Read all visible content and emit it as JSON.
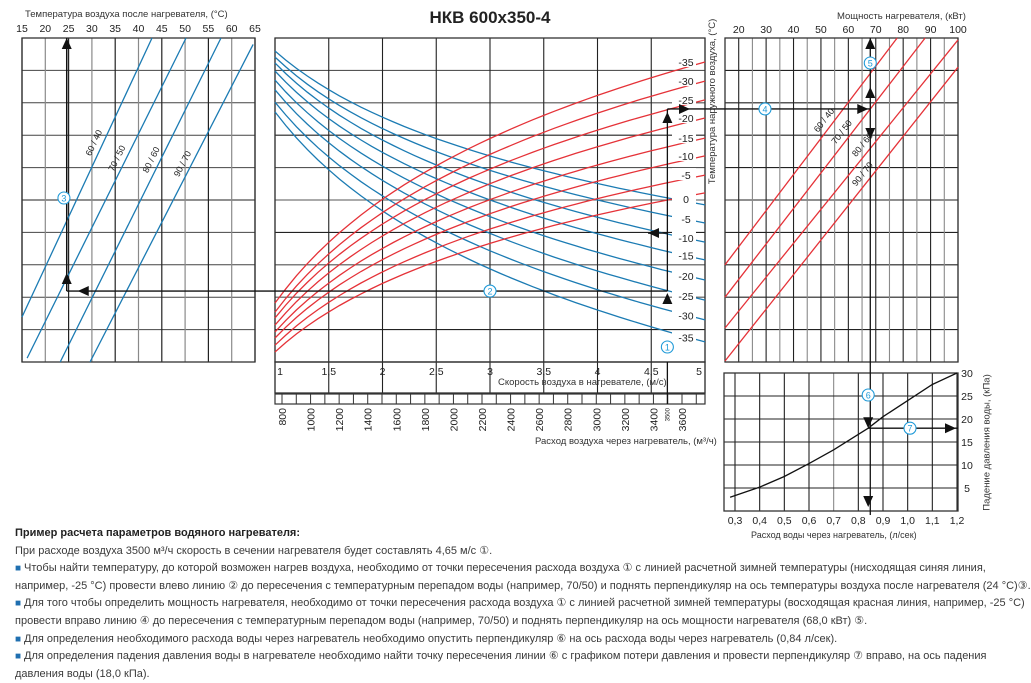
{
  "colors": {
    "blue": "#1b7bb3",
    "red": "#e53238",
    "grid_dark": "#222222",
    "grid_light": "#8a8a8a",
    "marker": "#1f9ad8",
    "bullet": "#1f6fb0"
  },
  "chart_data": {
    "type": "line",
    "title": "НКВ 600х350-4",
    "grid": true,
    "panels": {
      "outlet_temperature": {
        "xlabel": "Температура воздуха после нагревателя, (°C)",
        "xlim": [
          15,
          65
        ],
        "xticks": [
          "15",
          "20",
          "25",
          "30",
          "35",
          "40",
          "45",
          "50",
          "55",
          "60",
          "65"
        ],
        "y_rows": [
          0,
          10
        ],
        "series": [
          {
            "name": "60 / 40",
            "points": [
              [
                15.0,
                8.61
              ],
              [
                42.9,
                0
              ]
            ]
          },
          {
            "name": "70 / 50",
            "points": [
              [
                16.1,
                9.88
              ],
              [
                50.2,
                0
              ]
            ]
          },
          {
            "name": "80 / 60",
            "points": [
              [
                23.2,
                10
              ],
              [
                57.7,
                0
              ]
            ]
          },
          {
            "name": "90 / 70",
            "points": [
              [
                29.6,
                10
              ],
              [
                64.6,
                0.2
              ]
            ]
          }
        ]
      },
      "air_speed": {
        "xlabel": "Скорость воздуха в нагревателе, (м/с)",
        "xlim": [
          1,
          5
        ],
        "xticks": [
          "1",
          "1,5",
          "2",
          "2,5",
          "3",
          "3,5",
          "4",
          "4,5",
          "5"
        ],
        "ylabel": "Температура наружного воздуха, (°C)",
        "y_rows": [
          0,
          10
        ],
        "descending_blue": [
          {
            "name": "0",
            "start_row": 0.4,
            "end_row": 5.15
          },
          {
            "name": "-5",
            "start_row": 0.59,
            "end_row": 5.71
          },
          {
            "name": "-10",
            "start_row": 0.77,
            "end_row": 6.3
          },
          {
            "name": "-15",
            "start_row": 1.02,
            "end_row": 6.85
          },
          {
            "name": "-20",
            "start_row": 1.3,
            "end_row": 7.47
          },
          {
            "name": "-25",
            "start_row": 1.6,
            "end_row": 8.09
          },
          {
            "name": "-30",
            "start_row": 1.98,
            "end_row": 8.7
          },
          {
            "name": "-35",
            "start_row": 2.28,
            "end_row": 9.38
          }
        ],
        "ascending_red": [
          {
            "name": "-35",
            "start_row": 8.18,
            "end_row": 0.74
          },
          {
            "name": "-30",
            "start_row": 8.46,
            "end_row": 1.33
          },
          {
            "name": "-25",
            "start_row": 8.64,
            "end_row": 1.91
          },
          {
            "name": "-20",
            "start_row": 8.86,
            "end_row": 2.47
          },
          {
            "name": "-15",
            "start_row": 9.07,
            "end_row": 3.09
          },
          {
            "name": "-10",
            "start_row": 9.26,
            "end_row": 3.64
          },
          {
            "name": "-5",
            "start_row": 9.48,
            "end_row": 4.23
          },
          {
            "name": "0",
            "start_row": 9.69,
            "end_row": 4.78
          }
        ]
      },
      "air_flow": {
        "xlabel": "Расход воздуха через нагреватель, (м³/ч)",
        "xlim": [
          750,
          3780
        ],
        "xticks": [
          "800",
          "1000",
          "1200",
          "1400",
          "1600",
          "1800",
          "2000",
          "2200",
          "2400",
          "2600",
          "2800",
          "3000",
          "3200",
          "3400",
          "3600"
        ],
        "marker": "3500"
      },
      "heater_power": {
        "xlabel": "Мощность нагревателя, (кВт)",
        "xlim": [
          15,
          100
        ],
        "xticks": [
          "20",
          "30",
          "40",
          "50",
          "60",
          "70",
          "80",
          "90",
          "100"
        ],
        "y_rows": [
          0,
          10
        ],
        "series": [
          {
            "name": "60 / 40",
            "points": [
              [
                15,
                7.0
              ],
              [
                77.8,
                0
              ]
            ]
          },
          {
            "name": "70 / 50",
            "points": [
              [
                15,
                8.0
              ],
              [
                88.0,
                0
              ]
            ]
          },
          {
            "name": "80 / 60",
            "points": [
              [
                15,
                8.95
              ],
              [
                100,
                0.06
              ]
            ]
          },
          {
            "name": "90 / 70",
            "points": [
              [
                15,
                9.97
              ],
              [
                100,
                0.9
              ]
            ]
          }
        ]
      },
      "pressure_drop": {
        "xlabel": "Расход воды через нагреватель, (л/сек)",
        "ylabel": "Падение давления воды, (кПа)",
        "xlim": [
          0.256,
          1.207
        ],
        "ylim": [
          0,
          30
        ],
        "xticks": [
          "0,3",
          "0,4",
          "0,5",
          "0,6",
          "0,7",
          "0,8",
          "0,9",
          "1,0",
          "1,1",
          "1,2"
        ],
        "yticks": [
          "5",
          "10",
          "15",
          "20",
          "25",
          "30"
        ],
        "series": [
          {
            "name": "pressure drop",
            "x": [
              0.28,
              0.4,
              0.5,
              0.6,
              0.7,
              0.84,
              0.9,
              1.0,
              1.1,
              1.2
            ],
            "y": [
              3,
              5.2,
              7.5,
              10.3,
              13.3,
              18,
              20.5,
              24,
              27.5,
              30
            ]
          }
        ]
      }
    },
    "example": {
      "air_flow": 3500,
      "air_speed": 4.65,
      "outdoor_temp": -25,
      "outlet_temp": 24,
      "power": 68.0,
      "water_flow": 0.84,
      "pressure_drop": 18.0,
      "markers": [
        "1",
        "2",
        "3",
        "4",
        "5",
        "6",
        "7"
      ]
    }
  },
  "notes": {
    "heading": "Пример расчета параметров водяного нагревателя:",
    "bullet": "■",
    "p1": "При расходе воздуха 3500 м³/ч скорость в сечении нагревателя будет составлять 4,65 м/с ①.",
    "p2a": "Чтобы найти температуру, до которой возможен нагрев воздуха, необходимо от точки пересечения расхода воздуха ① с линией расчетной зимней температуры (нисходящая синяя линия,",
    "p2b": "например, -25 °C) провести влево линию ② до пересечения с температурным перепадом воды (например, 70/50) и поднять перпендикуляр на ось температуры воздуха после нагревателя (24 °C)③.",
    "p3a": "Для того чтобы определить мощность нагревателя, необходимо от точки пересечения расхода воздуха ① с линией расчетной зимней температуры (восходящая красная линия, например, -25 °C)",
    "p3b": "провести вправо линию ④ до пересечения с температурным перепадом воды (например, 70/50) и поднять перпендикуляр на ось мощности нагревателя (68,0 кВт) ⑤.",
    "p4": "Для определения необходимого расхода воды через нагреватель необходимо опустить перпендикуляр ⑥ на ось расхода воды через нагреватель (0,84 л/сек).",
    "p5a": "Для определения падения давления воды в нагревателе необходимо найти точку пересечения линии ⑥ с графиком потери давления и провести перпендикуляр ⑦ вправо, на ось падения",
    "p5b": "давления воды (18,0 кПа)."
  }
}
